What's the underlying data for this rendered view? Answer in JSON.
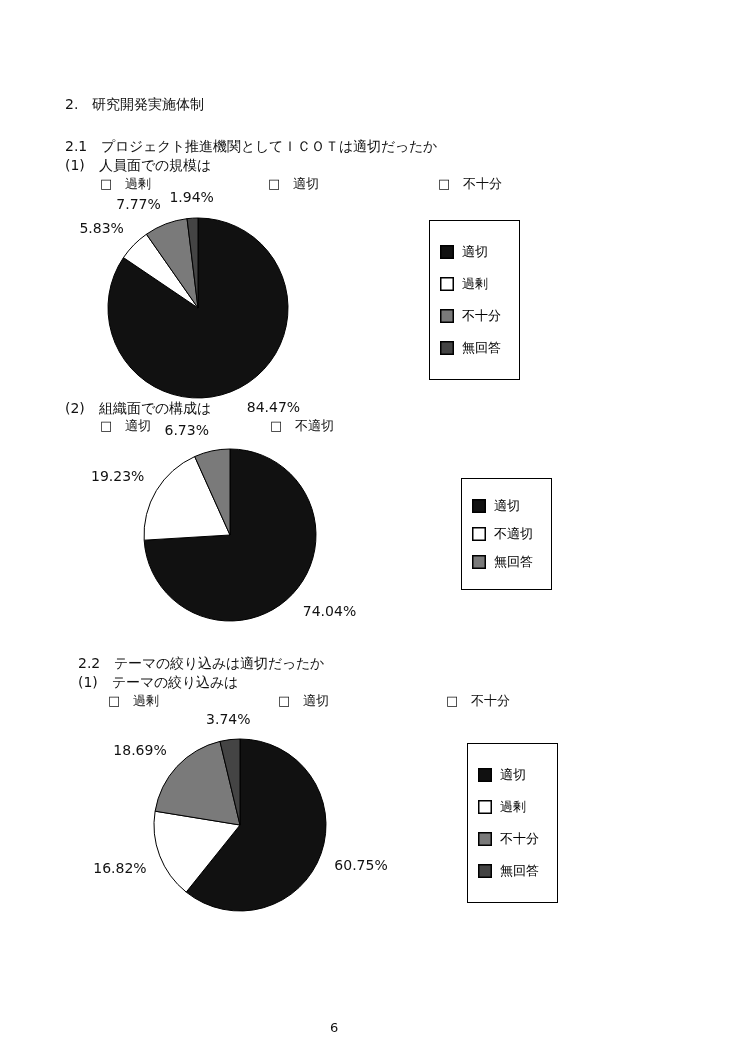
{
  "chart_data": [
    {
      "type": "pie",
      "title": "2.　研究開発実施体制",
      "subtitle": "2.1　プロジェクト推進機関としてＩＣＯＴは適切だったか",
      "annotations": [
        "(1)　人員面での規模は",
        "□　過剰",
        "□　適切",
        "□　不十分"
      ],
      "categories": [
        "適切",
        "過剰",
        "不十分",
        "無回答"
      ],
      "values": [
        84.47,
        5.83,
        7.77,
        1.94
      ],
      "value_labels": [
        "84.47%",
        "5.83%",
        "7.77%",
        "1.94%"
      ],
      "colors": [
        "#111111",
        "#ffffff",
        "#7a7a7a",
        "#444444"
      ],
      "legend": "right"
    },
    {
      "type": "pie",
      "annotations": [
        "(2)　組織面での構成は",
        "□　適切",
        "□　不適切"
      ],
      "categories": [
        "適切",
        "不適切",
        "無回答"
      ],
      "values": [
        74.04,
        19.23,
        6.73
      ],
      "value_labels": [
        "74.04%",
        "19.23%",
        "6.73%"
      ],
      "colors": [
        "#111111",
        "#ffffff",
        "#7a7a7a"
      ],
      "legend": "right"
    },
    {
      "type": "pie",
      "title": "2.2　テーマの絞り込みは適切だったか",
      "annotations": [
        "(1)　テーマの絞り込みは",
        "□　過剰",
        "□　適切",
        "□　不十分",
        "6"
      ],
      "categories": [
        "適切",
        "過剰",
        "不十分",
        "無回答"
      ],
      "values": [
        60.75,
        16.82,
        18.69,
        3.74
      ],
      "value_labels": [
        "60.75%",
        "16.82%",
        "18.69%",
        "3.74%"
      ],
      "colors": [
        "#111111",
        "#ffffff",
        "#7a7a7a",
        "#444444"
      ],
      "legend": "right"
    }
  ]
}
